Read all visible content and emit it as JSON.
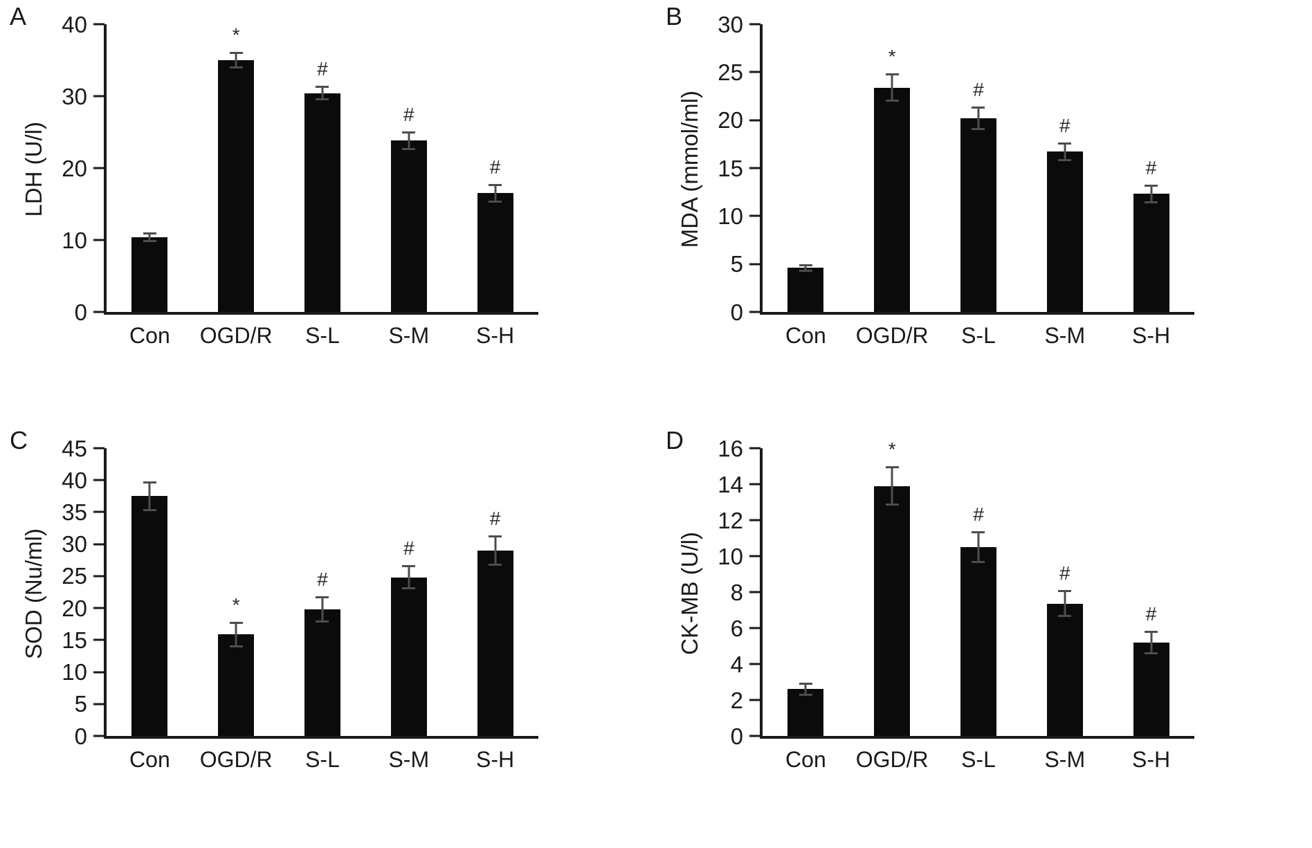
{
  "figure": {
    "background": "#ffffff",
    "bar_color": "#0b0b0b",
    "error_color": "#4d4d4d",
    "axis_color": "#1a1a1a"
  },
  "chart_data": [
    {
      "panel": "A",
      "type": "bar",
      "title": "",
      "ylabel": "LDH (U/l)",
      "xlabel": "",
      "categories": [
        "Con",
        "OGD/R",
        "S-L",
        "S-M",
        "S-H"
      ],
      "values": [
        10.4,
        35.0,
        30.4,
        23.8,
        16.5
      ],
      "errors": [
        0.7,
        1.2,
        1.0,
        1.3,
        1.3
      ],
      "annotations": [
        "",
        "*",
        "#",
        "#",
        "#"
      ],
      "ylim": [
        0,
        40
      ],
      "ytick_step": 10,
      "grid": false,
      "legend": null
    },
    {
      "panel": "B",
      "type": "bar",
      "title": "",
      "ylabel": "MDA (mmol/ml)",
      "xlabel": "",
      "categories": [
        "Con",
        "OGD/R",
        "S-L",
        "S-M",
        "S-H"
      ],
      "values": [
        4.6,
        23.4,
        20.2,
        16.7,
        12.3
      ],
      "errors": [
        0.4,
        1.5,
        1.2,
        1.0,
        1.0
      ],
      "annotations": [
        "",
        "*",
        "#",
        "#",
        "#"
      ],
      "ylim": [
        0,
        30
      ],
      "ytick_step": 5,
      "grid": false,
      "legend": null
    },
    {
      "panel": "C",
      "type": "bar",
      "title": "",
      "ylabel": "SOD (Nu/ml)",
      "xlabel": "",
      "categories": [
        "Con",
        "OGD/R",
        "S-L",
        "S-M",
        "S-H"
      ],
      "values": [
        37.5,
        15.9,
        19.8,
        24.8,
        29.0
      ],
      "errors": [
        2.3,
        2.0,
        2.1,
        1.9,
        2.4
      ],
      "annotations": [
        "",
        "*",
        "#",
        "#",
        "#"
      ],
      "ylim": [
        0,
        45
      ],
      "ytick_step": 5,
      "grid": false,
      "legend": null
    },
    {
      "panel": "D",
      "type": "bar",
      "title": "",
      "ylabel": "CK-MB (U/l)",
      "xlabel": "",
      "categories": [
        "Con",
        "OGD/R",
        "S-L",
        "S-M",
        "S-H"
      ],
      "values": [
        2.6,
        13.9,
        10.5,
        7.35,
        5.2
      ],
      "errors": [
        0.35,
        1.1,
        0.9,
        0.75,
        0.65
      ],
      "annotations": [
        "",
        "*",
        "#",
        "#",
        "#"
      ],
      "ylim": [
        0,
        16
      ],
      "ytick_step": 2,
      "grid": false,
      "legend": null
    }
  ]
}
